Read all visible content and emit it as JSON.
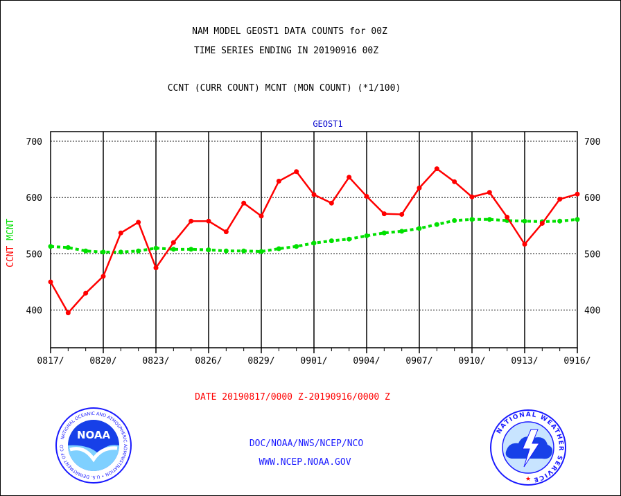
{
  "header": {
    "line1": "NAM MODEL GEOST1 DATA COUNTS for 00Z",
    "line2": "TIME SERIES ENDING IN 20190916 00Z",
    "line3": "CCNT (CURR COUNT) MCNT (MON COUNT) (*1/100)"
  },
  "footer": {
    "date_range": "DATE 20190817/0000 Z-20190916/0000 Z",
    "org": "DOC/NOAA/NWS/NCEP/NCO",
    "url": "WWW.NCEP.NOAA.GOV"
  },
  "logos": {
    "noaa_text": "NOAA",
    "noaa_ring": "NATIONAL OCEANIC AND ATMOSPHERIC ADMINISTRATION • U.S. DEPARTMENT OF COMMERCE",
    "nws_ring": "NATIONAL WEATHER SERVICE"
  },
  "colors": {
    "ccnt": "#ff0000",
    "mcnt": "#00e000",
    "panel_title": "#0000cc",
    "footer_blue": "#1a1aff"
  },
  "chart_data": {
    "type": "line",
    "panel_title": "GEOST1",
    "ylabel_parts": [
      {
        "text": "CCNT",
        "color": "#ff0000"
      },
      {
        "text": "MCNT",
        "color": "#00e000"
      }
    ],
    "ylim": [
      333,
      717
    ],
    "y_ticks": [
      400,
      500,
      600,
      700
    ],
    "x_tick_labels": [
      "0817/",
      "0820/",
      "0823/",
      "0826/",
      "0829/",
      "0901/",
      "0904/",
      "0907/",
      "0910/",
      "0913/",
      "0916/"
    ],
    "x_days": 30,
    "grid": true,
    "series": [
      {
        "name": "CCNT",
        "values": [
          450,
          395,
          430,
          460,
          537,
          556,
          475,
          520,
          558,
          558,
          539,
          590,
          567,
          629,
          646,
          605,
          590,
          636,
          602,
          571,
          570,
          617,
          651,
          628,
          601,
          609,
          565,
          517,
          554,
          597,
          606
        ]
      },
      {
        "name": "MCNT",
        "values": [
          513,
          511,
          505,
          503,
          503,
          505,
          510,
          508,
          508,
          507,
          505,
          505,
          504,
          509,
          513,
          519,
          523,
          526,
          532,
          537,
          540,
          545,
          552,
          559,
          561,
          561,
          559,
          558,
          557,
          558,
          561
        ]
      }
    ]
  }
}
